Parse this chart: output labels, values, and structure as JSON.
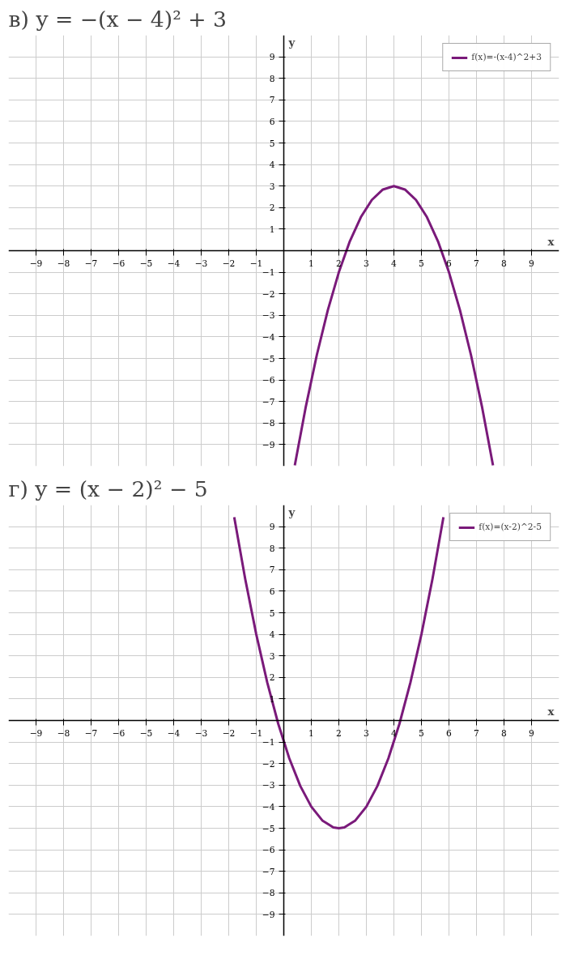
{
  "chart_data": [
    {
      "type": "line",
      "title": "в) y = −(x − 4)² + 3",
      "xlabel": "x",
      "ylabel": "y",
      "x": [
        0.4,
        0.8,
        1.2,
        1.6,
        2.0,
        2.4,
        2.8,
        3.2,
        3.6,
        4.0,
        4.4,
        4.8,
        5.2,
        5.6,
        6.0,
        6.4,
        6.8,
        7.2,
        7.6
      ],
      "series": [
        {
          "name": "f(x)=-(x-4)^2+3",
          "color": "#7a1a7a",
          "values": [
            -9.96,
            -7.24,
            -4.84,
            -2.76,
            -1.0,
            0.44,
            1.56,
            2.36,
            2.84,
            3.0,
            2.84,
            2.36,
            1.56,
            0.44,
            -1.0,
            -2.76,
            -4.84,
            -7.24,
            -9.96
          ]
        }
      ],
      "xlim": [
        -10,
        10
      ],
      "ylim": [
        -10,
        10
      ],
      "xticks": [
        -9,
        -8,
        -7,
        -6,
        -5,
        -4,
        -3,
        -2,
        -1,
        1,
        2,
        3,
        4,
        5,
        6,
        7,
        8,
        9
      ],
      "yticks": [
        -9,
        -8,
        -7,
        -6,
        -5,
        -4,
        -3,
        -2,
        -1,
        1,
        2,
        3,
        4,
        5,
        6,
        7,
        8,
        9
      ],
      "grid": true,
      "legend": "top right",
      "marker": "none",
      "line_style": "solid"
    },
    {
      "type": "line",
      "title": "г) y = (x − 2)² − 5",
      "xlabel": "x",
      "ylabel": "y",
      "x": [
        -1.8,
        -1.4,
        -1.0,
        -0.6,
        -0.2,
        0.2,
        0.6,
        1.0,
        1.4,
        1.8,
        2.0,
        2.2,
        2.6,
        3.0,
        3.4,
        3.8,
        4.2,
        4.6,
        5.0,
        5.4,
        5.8
      ],
      "series": [
        {
          "name": "f(x)=(x-2)^2-5",
          "color": "#7a1a7a",
          "values": [
            9.44,
            6.56,
            4.0,
            1.76,
            -0.16,
            -1.76,
            -3.04,
            -4.0,
            -4.64,
            -4.96,
            -5.0,
            -4.96,
            -4.64,
            -4.0,
            -3.04,
            -1.76,
            -0.16,
            1.76,
            4.0,
            6.56,
            9.44
          ]
        }
      ],
      "xlim": [
        -10,
        10
      ],
      "ylim": [
        -10,
        10
      ],
      "xticks": [
        -9,
        -8,
        -7,
        -6,
        -5,
        -4,
        -3,
        -2,
        -1,
        1,
        2,
        3,
        4,
        5,
        6,
        7,
        8,
        9
      ],
      "yticks": [
        -9,
        -8,
        -7,
        -6,
        -5,
        -4,
        -3,
        -2,
        -1,
        1,
        2,
        3,
        4,
        5,
        6,
        7,
        8,
        9
      ],
      "grid": true,
      "legend": "top right",
      "marker": "none",
      "line_style": "solid"
    }
  ]
}
